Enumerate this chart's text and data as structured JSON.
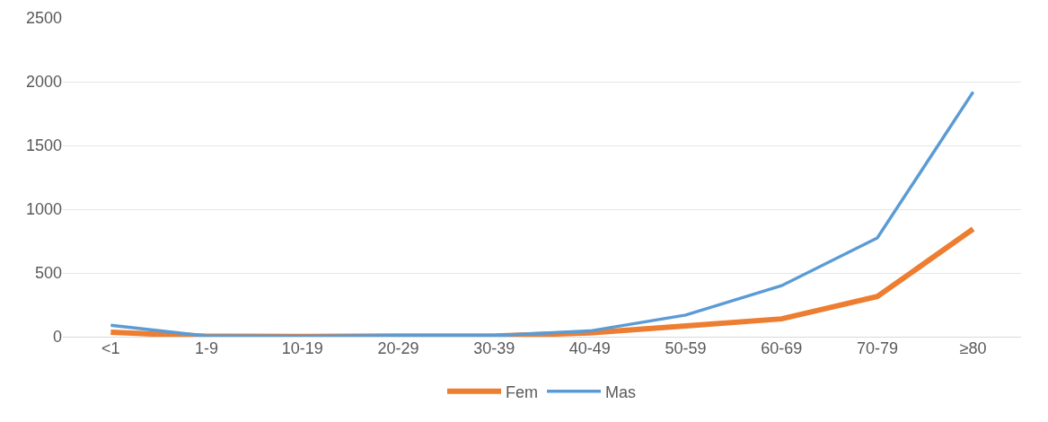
{
  "chart_data": {
    "type": "line",
    "categories": [
      "<1",
      "1-9",
      "10-19",
      "20-29",
      "30-39",
      "40-49",
      "50-59",
      "60-69",
      "70-79",
      "≥80"
    ],
    "series": [
      {
        "name": "Fem",
        "color": "#ed7d31",
        "values": [
          35,
          3,
          2,
          5,
          6,
          30,
          85,
          140,
          315,
          845
        ]
      },
      {
        "name": "Mas",
        "color": "#5b9bd5",
        "values": [
          90,
          5,
          3,
          8,
          8,
          45,
          170,
          400,
          775,
          1920
        ]
      }
    ],
    "ylim": [
      0,
      2500
    ],
    "yticks": [
      0,
      500,
      1000,
      1500,
      2000,
      2500
    ],
    "grid": "y",
    "legend": "bottom",
    "marker": "none",
    "line_style": "solid"
  }
}
